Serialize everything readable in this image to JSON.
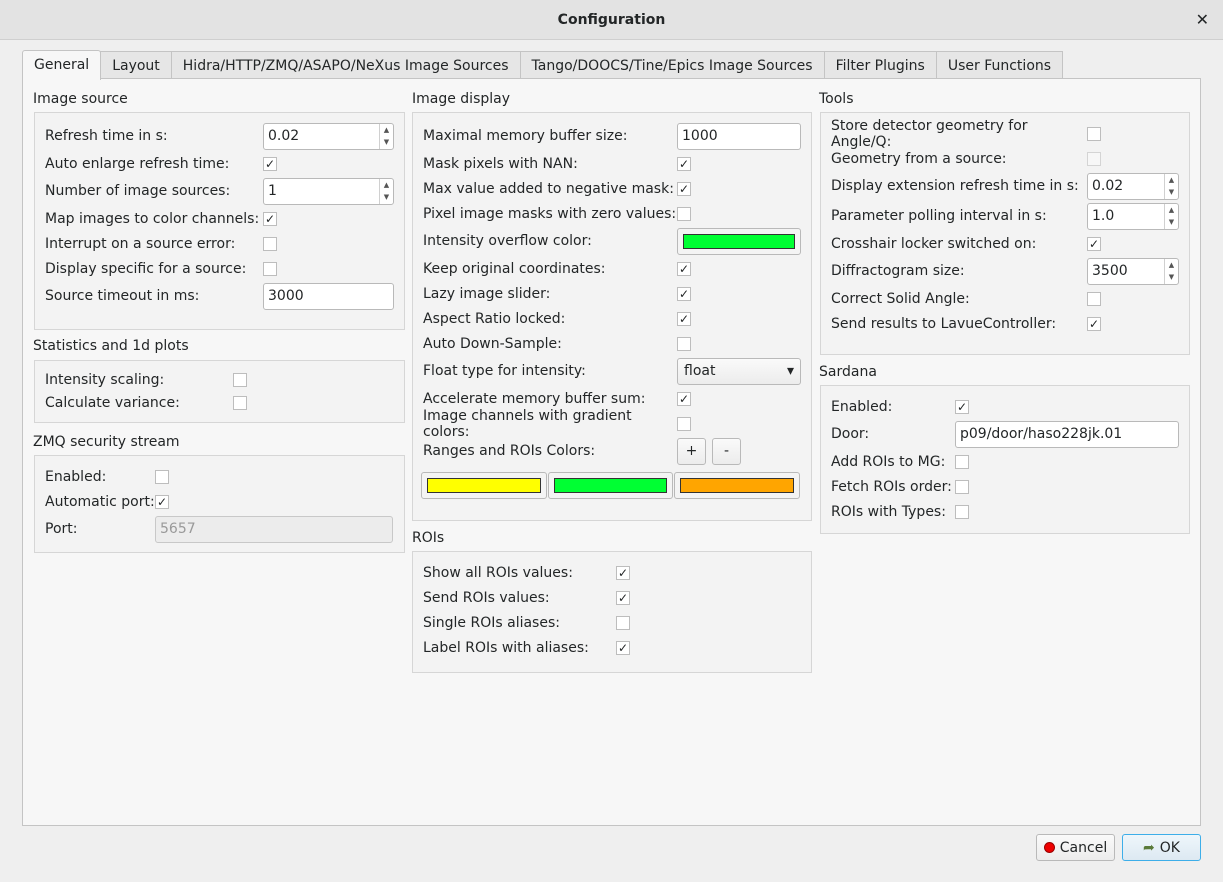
{
  "window": {
    "title": "Configuration",
    "close_icon": "close-icon"
  },
  "tabs": [
    "General",
    "Layout",
    "Hidra/HTTP/ZMQ/ASAPO/NeXus Image Sources",
    "Tango/DOOCS/Tine/Epics Image Sources",
    "Filter Plugins",
    "User Functions"
  ],
  "active_tab": "General",
  "groups": [
    {
      "title": "Image source",
      "rows": [
        {
          "label": "Refresh time in s:",
          "type": "spin",
          "value": "0.02"
        },
        {
          "label": "Auto enlarge refresh time:",
          "type": "check",
          "checked": true
        },
        {
          "label": "Number of image sources:",
          "type": "spin",
          "value": "1"
        },
        {
          "label": "Map images to color channels:",
          "type": "check",
          "checked": true
        },
        {
          "label": "Interrupt on a source error:",
          "type": "check",
          "checked": false
        },
        {
          "label": "Display specific for a source:",
          "type": "check",
          "checked": false
        },
        {
          "label": "Source timeout in ms:",
          "type": "text",
          "value": "3000"
        }
      ]
    },
    {
      "title": "Statistics and 1d plots",
      "rows": [
        {
          "label": "Intensity scaling:",
          "type": "check",
          "checked": false
        },
        {
          "label": "Calculate variance:",
          "type": "check",
          "checked": false
        }
      ]
    },
    {
      "title": "ZMQ security stream",
      "rows": [
        {
          "label": "Enabled:",
          "type": "check",
          "checked": false
        },
        {
          "label": "Automatic port:",
          "type": "check",
          "checked": true
        },
        {
          "label": "Port:",
          "type": "text",
          "value": "5657",
          "disabled": true
        }
      ]
    },
    {
      "title": "Image display",
      "rows": [
        {
          "label": "Maximal memory buffer size:",
          "type": "text",
          "value": "1000"
        },
        {
          "label": "Mask pixels with NAN:",
          "type": "check",
          "checked": true
        },
        {
          "label": "Max value added to negative mask:",
          "type": "check",
          "checked": true
        },
        {
          "label": "Pixel image masks with zero values:",
          "type": "check",
          "checked": false
        },
        {
          "label": "Intensity overflow color:",
          "type": "color",
          "value": "#00ff33"
        },
        {
          "label": "Keep original coordinates:",
          "type": "check",
          "checked": true
        },
        {
          "label": "Lazy image slider:",
          "type": "check",
          "checked": true
        },
        {
          "label": "Aspect Ratio locked:",
          "type": "check",
          "checked": true
        },
        {
          "label": "Auto Down-Sample:",
          "type": "check",
          "checked": false
        },
        {
          "label": "Float type for intensity:",
          "type": "combo",
          "value": "float"
        },
        {
          "label": "Accelerate memory buffer sum:",
          "type": "check",
          "checked": true
        },
        {
          "label": "Image channels with gradient colors:",
          "type": "check",
          "checked": false
        },
        {
          "label": "Ranges and ROIs Colors:",
          "type": "buttons",
          "buttons": [
            "+",
            "-"
          ]
        },
        {
          "label": "",
          "type": "colors",
          "colors": [
            "#ffff00",
            "#00ff33",
            "#ffa500"
          ]
        }
      ]
    },
    {
      "title": "ROIs",
      "rows": [
        {
          "label": "Show all ROIs values:",
          "type": "check",
          "checked": true
        },
        {
          "label": "Send ROIs values:",
          "type": "check",
          "checked": true
        },
        {
          "label": "Single ROIs aliases:",
          "type": "check",
          "checked": false
        },
        {
          "label": "Label ROIs with aliases:",
          "type": "check",
          "checked": true
        }
      ]
    },
    {
      "title": "Tools",
      "rows": [
        {
          "label": "Store detector geometry for Angle/Q:",
          "type": "check",
          "checked": false
        },
        {
          "label": "Geometry from a source:",
          "type": "check",
          "checked": false,
          "disabled": true
        },
        {
          "label": "Display extension refresh time in s:",
          "type": "spin",
          "value": "0.02"
        },
        {
          "label": "Parameter polling interval in s:",
          "type": "spin",
          "value": "1.0"
        },
        {
          "label": "Crosshair locker switched on:",
          "type": "check",
          "checked": true
        },
        {
          "label": "Diffractogram size:",
          "type": "spin",
          "value": "3500"
        },
        {
          "label": "Correct Solid Angle:",
          "type": "check",
          "checked": false
        },
        {
          "label": "Send results to LavueController:",
          "type": "check",
          "checked": true
        }
      ]
    },
    {
      "title": "Sardana",
      "rows": [
        {
          "label": "Enabled:",
          "type": "check",
          "checked": true
        },
        {
          "label": "Door:",
          "type": "text",
          "value": "p09/door/haso228jk.01"
        },
        {
          "label": "Add ROIs to MG:",
          "type": "check",
          "checked": false
        },
        {
          "label": "Fetch ROIs order:",
          "type": "check",
          "checked": false
        },
        {
          "label": "ROIs with Types:",
          "type": "check",
          "checked": false
        }
      ]
    }
  ],
  "buttons": {
    "cancel": "Cancel",
    "ok": "OK"
  }
}
